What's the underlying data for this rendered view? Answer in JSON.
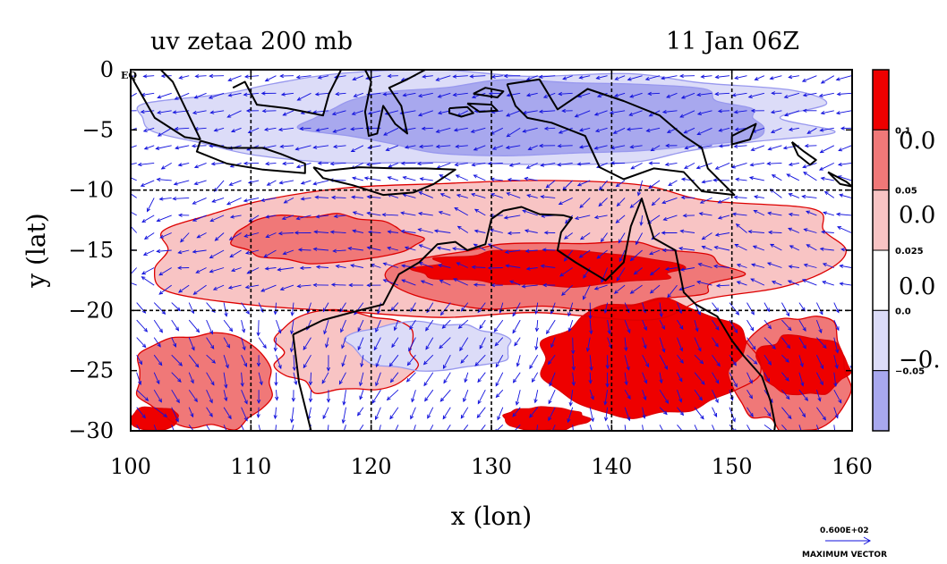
{
  "chart_data": {
    "type": "heatmap",
    "title_left": "uv zetaa 200 mb",
    "title_right": "11 Jan 06Z",
    "xlabel": "x (lon)",
    "ylabel": "y (lat)",
    "xlim": [
      100,
      160
    ],
    "ylim": [
      -30,
      0
    ],
    "x_ticks": [
      "100",
      "110",
      "120",
      "130",
      "140",
      "150",
      "160"
    ],
    "y_ticks": [
      "0",
      "−5",
      "−10",
      "−15",
      "−20",
      "−25",
      "−30"
    ],
    "y_top_marker": "EQ",
    "grid_lines_lon": [
      110,
      120,
      130,
      140,
      150
    ],
    "grid_lines_lat": [
      -10,
      -20
    ],
    "grid": true,
    "colorbar": {
      "placement": "right",
      "levels_small": [
        "0.1",
        "0.05",
        "0.025",
        "0.0",
        "−0.05"
      ],
      "labels_big": [
        "0.0",
        "0.0",
        "0.0",
        "−0."
      ],
      "colors": [
        "#ee0000",
        "#f07878",
        "#f8c4c4",
        "#ffffff",
        "#dcdcf8",
        "#a8a8ee"
      ]
    },
    "reference_vector": {
      "value": "0.600E+02",
      "label": "MAXIMUM VECTOR"
    },
    "colors": {
      "strong_positive": "#ee0000",
      "moderate_positive": "#f07878",
      "weak_positive": "#f8c4c4",
      "weak_negative": "#dcdcf8",
      "strong_negative": "#a8a8ee",
      "contour_positive": "#dd0000",
      "contour_negative": "#9898ee",
      "vectors": "#1010dd",
      "coastline": "#000000"
    },
    "regions": [
      {
        "level": "weak_negative",
        "lon": [
          101,
          158
        ],
        "lat": [
          -8,
          0
        ]
      },
      {
        "level": "strong_negative",
        "lon": [
          114,
          154
        ],
        "lat": [
          -7,
          -1
        ]
      },
      {
        "level": "weak_positive",
        "lon": [
          100,
          160
        ],
        "lat": [
          -21,
          -9
        ]
      },
      {
        "level": "moderate_positive",
        "lon": [
          108,
          124
        ],
        "lat": [
          -16,
          -12
        ]
      },
      {
        "level": "moderate_positive",
        "lon": [
          122,
          150
        ],
        "lat": [
          -20,
          -14
        ]
      },
      {
        "level": "strong_positive",
        "lon": [
          124,
          146
        ],
        "lat": [
          -18,
          -15
        ]
      },
      {
        "level": "weak_positive",
        "lon": [
          112,
          124
        ],
        "lat": [
          -27,
          -20
        ]
      },
      {
        "level": "weak_negative",
        "lon": [
          118,
          132
        ],
        "lat": [
          -25,
          -21
        ]
      },
      {
        "level": "strong_positive",
        "lon": [
          134,
          152
        ],
        "lat": [
          -29,
          -19
        ]
      },
      {
        "level": "moderate_positive",
        "lon": [
          150,
          160
        ],
        "lat": [
          -30,
          -20
        ]
      },
      {
        "level": "strong_positive",
        "lon": [
          152,
          160
        ],
        "lat": [
          -27,
          -22
        ]
      },
      {
        "level": "moderate_positive",
        "lon": [
          100,
          112
        ],
        "lat": [
          -30,
          -22
        ]
      },
      {
        "level": "strong_positive",
        "lon": [
          100,
          104
        ],
        "lat": [
          -30,
          -28
        ]
      },
      {
        "level": "strong_positive",
        "lon": [
          131,
          138
        ],
        "lat": [
          -30,
          -28
        ]
      }
    ],
    "coastlines": [
      [
        [
          113.5,
          -22
        ],
        [
          114,
          -26
        ],
        [
          115,
          -30
        ],
        [
          117.5,
          -35
        ],
        [
          122,
          -34
        ],
        [
          124,
          -33
        ],
        [
          126,
          -32.3
        ]
      ],
      [
        [
          113.5,
          -22
        ],
        [
          116,
          -20.8
        ],
        [
          119,
          -20
        ],
        [
          121,
          -19.5
        ],
        [
          122.3,
          -17
        ],
        [
          124,
          -16
        ],
        [
          125.5,
          -14.5
        ],
        [
          127,
          -14.3
        ],
        [
          128,
          -15
        ],
        [
          129.5,
          -14.5
        ],
        [
          130,
          -12.4
        ],
        [
          131,
          -11.7
        ],
        [
          132.5,
          -11.4
        ],
        [
          134,
          -12
        ],
        [
          136,
          -12.1
        ],
        [
          136.7,
          -12.3
        ],
        [
          135.8,
          -13.5
        ],
        [
          135.5,
          -15
        ],
        [
          137,
          -16
        ],
        [
          139.5,
          -17.5
        ],
        [
          141,
          -16
        ],
        [
          141.6,
          -13
        ],
        [
          142.5,
          -10.7
        ],
        [
          143.5,
          -14
        ],
        [
          145.3,
          -15
        ],
        [
          146,
          -18.5
        ],
        [
          147,
          -19.5
        ],
        [
          148.8,
          -20.5
        ],
        [
          150,
          -22.5
        ],
        [
          151,
          -23.8
        ],
        [
          152.5,
          -25.5
        ],
        [
          153.2,
          -27.5
        ],
        [
          153.6,
          -29.5
        ],
        [
          153.4,
          -31
        ]
      ],
      [
        [
          95,
          5.5
        ],
        [
          97.5,
          5.2
        ],
        [
          100,
          2.5
        ],
        [
          103.5,
          -1
        ],
        [
          105.8,
          -5.8
        ]
      ],
      [
        [
          105.8,
          -5.8
        ],
        [
          104.5,
          -5.6
        ],
        [
          102,
          -4
        ],
        [
          100.3,
          -1
        ],
        [
          99,
          1.5
        ]
      ],
      [
        [
          105.8,
          -5.9
        ],
        [
          108,
          -6.5
        ],
        [
          111,
          -6.5
        ],
        [
          112.5,
          -7
        ],
        [
          114.5,
          -7.8
        ],
        [
          114.5,
          -8.6
        ],
        [
          111,
          -8.3
        ],
        [
          108,
          -7.8
        ],
        [
          105.5,
          -6.8
        ],
        [
          105.8,
          -5.9
        ]
      ],
      [
        [
          115.2,
          -8.1
        ],
        [
          116.2,
          -8.4
        ],
        [
          119,
          -8.1
        ],
        [
          122,
          -8.2
        ],
        [
          124.5,
          -8.2
        ],
        [
          127,
          -8.3
        ],
        [
          125.2,
          -9.5
        ],
        [
          123.5,
          -10.2
        ],
        [
          121,
          -10.4
        ],
        [
          118.5,
          -9.6
        ],
        [
          116,
          -9
        ],
        [
          115.2,
          -8.1
        ]
      ],
      [
        [
          108.5,
          -1.5
        ],
        [
          109.5,
          -1
        ],
        [
          110.5,
          -2.9
        ],
        [
          113,
          -3.2
        ],
        [
          114.5,
          -3.5
        ],
        [
          116,
          -3.8
        ],
        [
          116.5,
          -2
        ],
        [
          117.5,
          0
        ],
        [
          118.5,
          1
        ]
      ],
      [
        [
          119.5,
          0
        ],
        [
          120,
          -1
        ],
        [
          119.5,
          -3.5
        ],
        [
          119.8,
          -5.5
        ],
        [
          120.5,
          -5.3
        ],
        [
          121,
          -3
        ],
        [
          122,
          -4.5
        ],
        [
          123,
          -5.3
        ],
        [
          122.5,
          -3
        ],
        [
          121.5,
          -1.5
        ],
        [
          123,
          -0.8
        ],
        [
          124.5,
          0
        ]
      ],
      [
        [
          126.5,
          -3.2
        ],
        [
          128,
          -3.1
        ],
        [
          128.5,
          -3.6
        ],
        [
          127.5,
          -3.9
        ],
        [
          126.5,
          -3.6
        ],
        [
          126.5,
          -3.2
        ]
      ],
      [
        [
          128,
          -2.8
        ],
        [
          130,
          -2.9
        ],
        [
          130.5,
          -3.4
        ],
        [
          129,
          -3.5
        ],
        [
          128,
          -2.8
        ]
      ],
      [
        [
          131.3,
          -1.2
        ],
        [
          134,
          -0.8
        ],
        [
          135.5,
          -3.3
        ],
        [
          138,
          -1.6
        ],
        [
          141,
          -2.6
        ],
        [
          144,
          -3.8
        ],
        [
          146,
          -5.5
        ],
        [
          147.5,
          -6.5
        ],
        [
          148,
          -8.2
        ],
        [
          150.2,
          -10.4
        ],
        [
          147.5,
          -10.1
        ],
        [
          146,
          -8.5
        ],
        [
          143.5,
          -8.2
        ],
        [
          141,
          -9.1
        ],
        [
          139,
          -8.1
        ],
        [
          137.8,
          -5.5
        ],
        [
          135,
          -4.4
        ],
        [
          133,
          -4
        ],
        [
          132,
          -3
        ],
        [
          131.3,
          -1.2
        ]
      ],
      [
        [
          150,
          -5.5
        ],
        [
          152,
          -4.5
        ],
        [
          151.5,
          -5.8
        ],
        [
          150,
          -6.2
        ],
        [
          150,
          -5.5
        ]
      ],
      [
        [
          155,
          -6
        ],
        [
          156,
          -6.8
        ],
        [
          157,
          -7.5
        ],
        [
          156.5,
          -7.9
        ],
        [
          155.5,
          -7.1
        ],
        [
          155,
          -6
        ]
      ],
      [
        [
          158,
          -8.5
        ],
        [
          159.5,
          -9.3
        ],
        [
          160,
          -9.7
        ],
        [
          159,
          -9.5
        ],
        [
          158,
          -8.5
        ]
      ],
      [
        [
          128.5,
          -2
        ],
        [
          129.5,
          -1.5
        ],
        [
          131,
          -1.8
        ],
        [
          130.5,
          -2.3
        ],
        [
          128.5,
          -2
        ]
      ]
    ]
  }
}
